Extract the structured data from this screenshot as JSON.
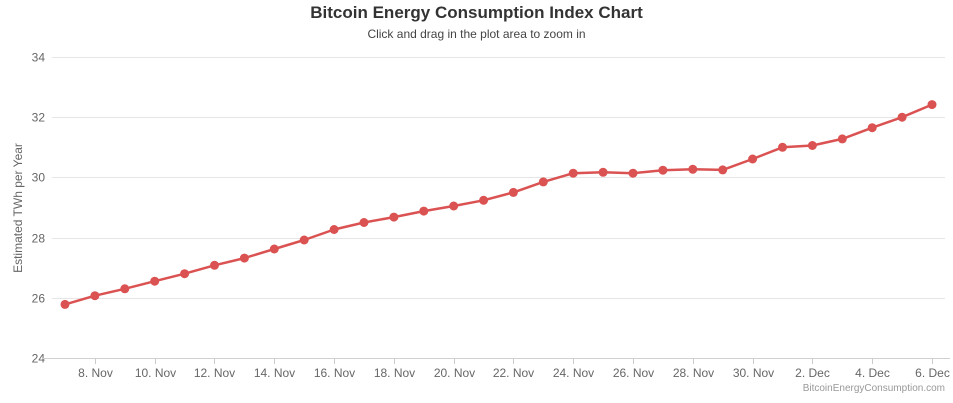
{
  "chart_data": {
    "type": "line",
    "title": "Bitcoin Energy Consumption Index Chart",
    "subtitle": "Click and drag in the plot area to zoom in",
    "xlabel": "",
    "ylabel": "Estimated TWh per Year",
    "ylim": [
      24,
      34
    ],
    "y_ticks": [
      24,
      26,
      28,
      30,
      32,
      34
    ],
    "grid": "horizontal",
    "legend": "off",
    "x": [
      "7. Nov",
      "8. Nov",
      "9. Nov",
      "10. Nov",
      "11. Nov",
      "12. Nov",
      "13. Nov",
      "14. Nov",
      "15. Nov",
      "16. Nov",
      "17. Nov",
      "18. Nov",
      "19. Nov",
      "20. Nov",
      "21. Nov",
      "22. Nov",
      "23. Nov",
      "24. Nov",
      "25. Nov",
      "26. Nov",
      "27. Nov",
      "28. Nov",
      "29. Nov",
      "30. Nov",
      "1. Dec",
      "2. Dec",
      "3. Dec",
      "4. Dec",
      "5. Dec",
      "6. Dec"
    ],
    "values": [
      25.78,
      26.07,
      26.3,
      26.55,
      26.8,
      27.08,
      27.32,
      27.62,
      27.92,
      28.27,
      28.5,
      28.68,
      28.88,
      29.05,
      29.24,
      29.5,
      29.85,
      30.14,
      30.17,
      30.14,
      30.24,
      30.27,
      30.25,
      30.61,
      31.0,
      31.06,
      31.28,
      31.65,
      32.0,
      32.42
    ],
    "x_tick_labels": [
      {
        "index": 1,
        "label": "8. Nov"
      },
      {
        "index": 3,
        "label": "10. Nov"
      },
      {
        "index": 5,
        "label": "12. Nov"
      },
      {
        "index": 7,
        "label": "14. Nov"
      },
      {
        "index": 9,
        "label": "16. Nov"
      },
      {
        "index": 11,
        "label": "18. Nov"
      },
      {
        "index": 13,
        "label": "20. Nov"
      },
      {
        "index": 15,
        "label": "22. Nov"
      },
      {
        "index": 17,
        "label": "24. Nov"
      },
      {
        "index": 19,
        "label": "26. Nov"
      },
      {
        "index": 21,
        "label": "28. Nov"
      },
      {
        "index": 23,
        "label": "30. Nov"
      },
      {
        "index": 25,
        "label": "2. Dec"
      },
      {
        "index": 27,
        "label": "4. Dec"
      },
      {
        "index": 29,
        "label": "6. Dec"
      }
    ],
    "series_color": "#db5252",
    "gridline_color": "#e6e6e6",
    "axis_line_color": "#d0d0d0",
    "tick_color": "#cccccc",
    "label_color": "#666666",
    "credit": "BitcoinEnergyConsumption.com"
  }
}
